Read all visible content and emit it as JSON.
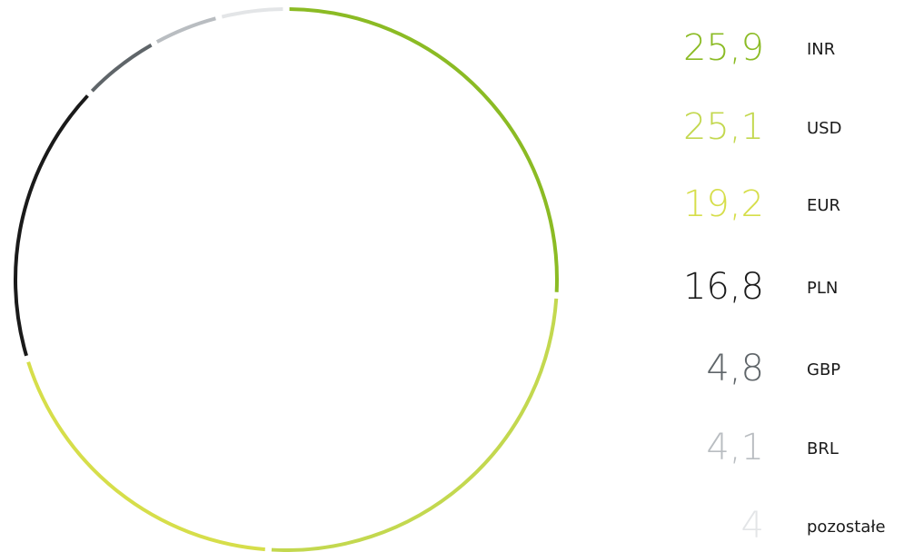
{
  "chart_data": {
    "type": "pie",
    "categories": [
      "INR",
      "USD",
      "EUR",
      "PLN",
      "GBP",
      "BRL",
      "pozostałe"
    ],
    "values": [
      25.9,
      25.1,
      19.2,
      16.8,
      4.8,
      4.1,
      4
    ],
    "value_labels": [
      "25,9",
      "25,1",
      "19,2",
      "16,8",
      "4,8",
      "4,1",
      "4"
    ],
    "colors": [
      "#8bbb24",
      "#c3d84f",
      "#d6de4a",
      "#1a1a1a",
      "#5f6569",
      "#b9bdc1",
      "#e3e5e7"
    ]
  }
}
